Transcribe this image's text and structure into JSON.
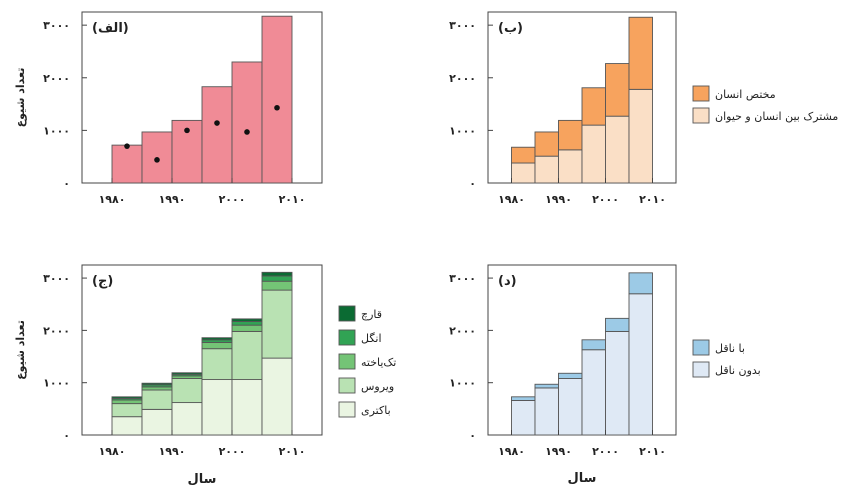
{
  "chart_data": [
    {
      "id": "a",
      "type": "bar",
      "panel_label": "(الف)",
      "ylabel": "تعداد شیوع",
      "xlabel": "",
      "xticks": [
        "۱۹۸۰",
        "۱۹۹۰",
        "۲۰۰۰",
        "۲۰۱۰"
      ],
      "yticks": [
        "۰",
        "۱۰۰۰",
        "۲۰۰۰",
        "۳۰۰۰"
      ],
      "ylim": [
        0,
        3250
      ],
      "xlim": [
        1975,
        2015
      ],
      "bar_edges": [
        1980,
        1985,
        1990,
        1995,
        2000,
        2005,
        2010
      ],
      "series": [
        {
          "values": [
            720,
            970,
            1190,
            1830,
            2300,
            3170
          ],
          "color": "#f08b96"
        }
      ],
      "points": {
        "x": [
          1982.5,
          1987.5,
          1992.5,
          1997.5,
          2002.5,
          2007.5
        ],
        "values": [
          700,
          440,
          1000,
          1140,
          970,
          1430
        ]
      }
    },
    {
      "id": "b",
      "type": "bar",
      "stacked": true,
      "panel_label": "(ب)",
      "ylabel": "",
      "xlabel": "",
      "xticks": [
        "۱۹۸۰",
        "۱۹۹۰",
        "۲۰۰۰",
        "۲۰۱۰"
      ],
      "yticks": [
        "۰",
        "۱۰۰۰",
        "۲۰۰۰",
        "۳۰۰۰"
      ],
      "ylim": [
        0,
        3250
      ],
      "xlim": [
        1975,
        2015
      ],
      "bar_edges": [
        1980,
        1985,
        1990,
        1995,
        2000,
        2005,
        2010
      ],
      "series": [
        {
          "name": "مشترک بین انسان و حیوان",
          "values": [
            380,
            510,
            630,
            1100,
            1270,
            1780
          ],
          "color": "#fadfc6"
        },
        {
          "name": "مختص انسان",
          "values": [
            300,
            460,
            560,
            710,
            1000,
            1370
          ],
          "color": "#f7a35e"
        }
      ],
      "legend": [
        "مختص انسان",
        "مشترک بین انسان و حیوان"
      ]
    },
    {
      "id": "c",
      "type": "bar",
      "stacked": true,
      "panel_label": "(ج)",
      "ylabel": "تعداد شیوع",
      "xlabel": "سال",
      "xticks": [
        "۱۹۸۰",
        "۱۹۹۰",
        "۲۰۰۰",
        "۲۰۱۰"
      ],
      "yticks": [
        "۰",
        "۱۰۰۰",
        "۲۰۰۰",
        "۳۰۰۰"
      ],
      "ylim": [
        0,
        3250
      ],
      "xlim": [
        1975,
        2015
      ],
      "bar_edges": [
        1980,
        1985,
        1990,
        1995,
        2000,
        2005,
        2010
      ],
      "series": [
        {
          "name": "باکتری",
          "values": [
            350,
            490,
            620,
            1060,
            1060,
            1470
          ],
          "color": "#eaf5e2"
        },
        {
          "name": "ویروس",
          "values": [
            250,
            370,
            460,
            590,
            920,
            1300
          ],
          "color": "#b9e2b3"
        },
        {
          "name": "تک‌یاخته",
          "values": [
            70,
            60,
            50,
            120,
            120,
            170
          ],
          "color": "#74c476"
        },
        {
          "name": "انگل",
          "values": [
            30,
            40,
            30,
            50,
            70,
            100
          ],
          "color": "#31a354"
        },
        {
          "name": "قارچ",
          "values": [
            30,
            30,
            30,
            40,
            50,
            70
          ],
          "color": "#0b6b33"
        }
      ],
      "legend": [
        "قارچ",
        "انگل",
        "تک‌یاخته",
        "ویروس",
        "باکتری"
      ]
    },
    {
      "id": "d",
      "type": "bar",
      "stacked": true,
      "panel_label": "(د)",
      "ylabel": "",
      "xlabel": "سال",
      "xticks": [
        "۱۹۸۰",
        "۱۹۹۰",
        "۲۰۰۰",
        "۲۰۱۰"
      ],
      "yticks": [
        "۰",
        "۱۰۰۰",
        "۲۰۰۰",
        "۳۰۰۰"
      ],
      "ylim": [
        0,
        3250
      ],
      "xlim": [
        1975,
        2015
      ],
      "bar_edges": [
        1980,
        1985,
        1990,
        1995,
        2000,
        2005,
        2010
      ],
      "series": [
        {
          "name": "بدون ناقل",
          "values": [
            660,
            900,
            1080,
            1630,
            1980,
            2700
          ],
          "color": "#dfe9f5"
        },
        {
          "name": "با ناقل",
          "values": [
            70,
            70,
            100,
            190,
            250,
            400
          ],
          "color": "#9ccae6"
        }
      ],
      "legend": [
        "با ناقل",
        "بدون ناقل"
      ]
    }
  ]
}
